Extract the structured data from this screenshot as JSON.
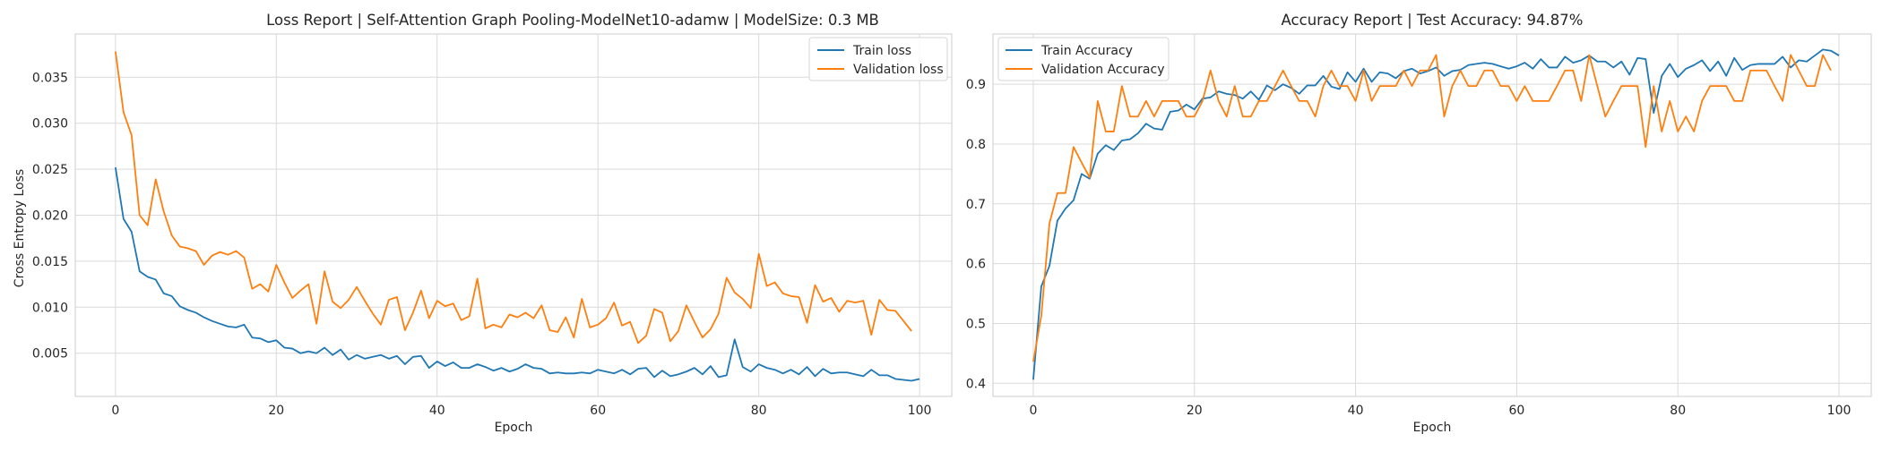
{
  "chart_data": [
    {
      "type": "line",
      "title": "Loss Report | Self-Attention Graph Pooling-ModelNet10-adamw | ModelSize: 0.3 MB",
      "xlabel": "Epoch",
      "ylabel": "Cross Entropy Loss",
      "xlim": [
        -5,
        104
      ],
      "ylim": [
        0.0003,
        0.0397
      ],
      "x_ticks": [
        0,
        20,
        40,
        60,
        80,
        100
      ],
      "y_ticks": [
        0.005,
        0.01,
        0.015,
        0.02,
        0.025,
        0.03,
        0.035
      ],
      "y_tick_labels": [
        "0.005",
        "0.010",
        "0.015",
        "0.020",
        "0.025",
        "0.030",
        "0.035"
      ],
      "grid": true,
      "legend_position": "top-right",
      "series": [
        {
          "name": "Train loss",
          "color": "#1f77b4",
          "values": [
            0.0252,
            0.0196,
            0.0182,
            0.0139,
            0.0133,
            0.013,
            0.0115,
            0.0112,
            0.0101,
            0.0097,
            0.0094,
            0.0089,
            0.0085,
            0.0082,
            0.0079,
            0.0078,
            0.0081,
            0.0067,
            0.0066,
            0.0062,
            0.0064,
            0.0056,
            0.0055,
            0.005,
            0.0052,
            0.005,
            0.0056,
            0.0048,
            0.0054,
            0.0043,
            0.0048,
            0.0044,
            0.0046,
            0.0048,
            0.0044,
            0.0047,
            0.0038,
            0.0046,
            0.0047,
            0.0034,
            0.0041,
            0.0036,
            0.004,
            0.0034,
            0.0034,
            0.0038,
            0.0035,
            0.0031,
            0.0034,
            0.003,
            0.0033,
            0.0038,
            0.0034,
            0.0033,
            0.0028,
            0.0029,
            0.0028,
            0.0028,
            0.0029,
            0.0028,
            0.0032,
            0.003,
            0.0028,
            0.0032,
            0.0027,
            0.0033,
            0.0034,
            0.0024,
            0.0031,
            0.0025,
            0.0027,
            0.003,
            0.0034,
            0.0027,
            0.0036,
            0.0024,
            0.0026,
            0.0065,
            0.0035,
            0.003,
            0.0038,
            0.0034,
            0.0032,
            0.0028,
            0.0032,
            0.0027,
            0.0035,
            0.0025,
            0.0033,
            0.0028,
            0.0029,
            0.0029,
            0.0027,
            0.0025,
            0.0032,
            0.0026,
            0.0026,
            0.0022,
            0.0021,
            0.002,
            0.0022
          ]
        },
        {
          "name": "Validation loss",
          "color": "#ff7f0e",
          "values": [
            0.0378,
            0.0312,
            0.0287,
            0.02,
            0.0189,
            0.0239,
            0.0204,
            0.0178,
            0.0166,
            0.0164,
            0.0161,
            0.0146,
            0.0156,
            0.016,
            0.0157,
            0.0161,
            0.0154,
            0.012,
            0.0125,
            0.0117,
            0.0146,
            0.0127,
            0.011,
            0.0118,
            0.0125,
            0.0082,
            0.0139,
            0.0106,
            0.0099,
            0.0108,
            0.0122,
            0.0107,
            0.0093,
            0.0081,
            0.0108,
            0.0111,
            0.0075,
            0.0094,
            0.0118,
            0.0088,
            0.0107,
            0.0101,
            0.0104,
            0.0086,
            0.009,
            0.0131,
            0.0077,
            0.0081,
            0.0078,
            0.0092,
            0.0089,
            0.0094,
            0.0088,
            0.0102,
            0.0075,
            0.0073,
            0.0089,
            0.0067,
            0.0109,
            0.0078,
            0.0081,
            0.0088,
            0.0105,
            0.008,
            0.0084,
            0.0061,
            0.0069,
            0.0098,
            0.0094,
            0.0063,
            0.0074,
            0.0102,
            0.0084,
            0.0067,
            0.0076,
            0.0093,
            0.0132,
            0.0116,
            0.0109,
            0.0099,
            0.0158,
            0.0123,
            0.0127,
            0.0115,
            0.0112,
            0.0111,
            0.0083,
            0.0124,
            0.0106,
            0.011,
            0.0095,
            0.0107,
            0.0105,
            0.0107,
            0.007,
            0.0108,
            0.0097,
            0.0096,
            0.0085,
            0.0074
          ]
        }
      ]
    },
    {
      "type": "line",
      "title": "Accuracy Report | Test Accuracy: 94.87%",
      "xlabel": "Epoch",
      "ylabel": "",
      "xlim": [
        -5,
        104
      ],
      "ylim": [
        0.378,
        0.984
      ],
      "x_ticks": [
        0,
        20,
        40,
        60,
        80,
        100
      ],
      "y_ticks": [
        0.4,
        0.5,
        0.6,
        0.7,
        0.8,
        0.9
      ],
      "y_tick_labels": [
        "0.4",
        "0.5",
        "0.6",
        "0.7",
        "0.8",
        "0.9"
      ],
      "grid": true,
      "legend_position": "top-left",
      "series": [
        {
          "name": "Train Accuracy",
          "color": "#1f77b4",
          "values": [
            0.406,
            0.562,
            0.596,
            0.672,
            0.692,
            0.706,
            0.75,
            0.742,
            0.784,
            0.798,
            0.79,
            0.806,
            0.808,
            0.818,
            0.834,
            0.826,
            0.824,
            0.854,
            0.856,
            0.866,
            0.858,
            0.876,
            0.878,
            0.888,
            0.884,
            0.882,
            0.876,
            0.888,
            0.874,
            0.898,
            0.89,
            0.9,
            0.894,
            0.884,
            0.898,
            0.898,
            0.914,
            0.896,
            0.892,
            0.92,
            0.904,
            0.926,
            0.904,
            0.92,
            0.918,
            0.91,
            0.922,
            0.926,
            0.918,
            0.922,
            0.928,
            0.914,
            0.922,
            0.924,
            0.932,
            0.934,
            0.936,
            0.934,
            0.93,
            0.926,
            0.93,
            0.936,
            0.926,
            0.942,
            0.928,
            0.928,
            0.946,
            0.936,
            0.94,
            0.948,
            0.938,
            0.938,
            0.928,
            0.938,
            0.916,
            0.944,
            0.942,
            0.852,
            0.914,
            0.934,
            0.912,
            0.926,
            0.932,
            0.94,
            0.922,
            0.938,
            0.914,
            0.944,
            0.924,
            0.932,
            0.934,
            0.934,
            0.934,
            0.946,
            0.928,
            0.94,
            0.938,
            0.948,
            0.958,
            0.956,
            0.948
          ]
        },
        {
          "name": "Validation Accuracy",
          "color": "#ff7f0e",
          "values": [
            0.436,
            0.513,
            0.667,
            0.718,
            0.718,
            0.795,
            0.769,
            0.744,
            0.872,
            0.821,
            0.821,
            0.897,
            0.846,
            0.846,
            0.872,
            0.846,
            0.872,
            0.872,
            0.872,
            0.846,
            0.846,
            0.872,
            0.923,
            0.872,
            0.846,
            0.897,
            0.846,
            0.846,
            0.872,
            0.872,
            0.897,
            0.923,
            0.897,
            0.872,
            0.872,
            0.846,
            0.897,
            0.923,
            0.897,
            0.897,
            0.872,
            0.923,
            0.872,
            0.897,
            0.897,
            0.897,
            0.923,
            0.897,
            0.923,
            0.923,
            0.949,
            0.846,
            0.897,
            0.923,
            0.897,
            0.897,
            0.923,
            0.923,
            0.897,
            0.897,
            0.872,
            0.897,
            0.872,
            0.872,
            0.872,
            0.897,
            0.923,
            0.923,
            0.872,
            0.949,
            0.897,
            0.846,
            0.872,
            0.897,
            0.897,
            0.897,
            0.795,
            0.897,
            0.821,
            0.872,
            0.821,
            0.846,
            0.821,
            0.872,
            0.897,
            0.897,
            0.897,
            0.872,
            0.872,
            0.923,
            0.923,
            0.923,
            0.897,
            0.872,
            0.949,
            0.923,
            0.897,
            0.897,
            0.949,
            0.923
          ]
        }
      ]
    }
  ]
}
